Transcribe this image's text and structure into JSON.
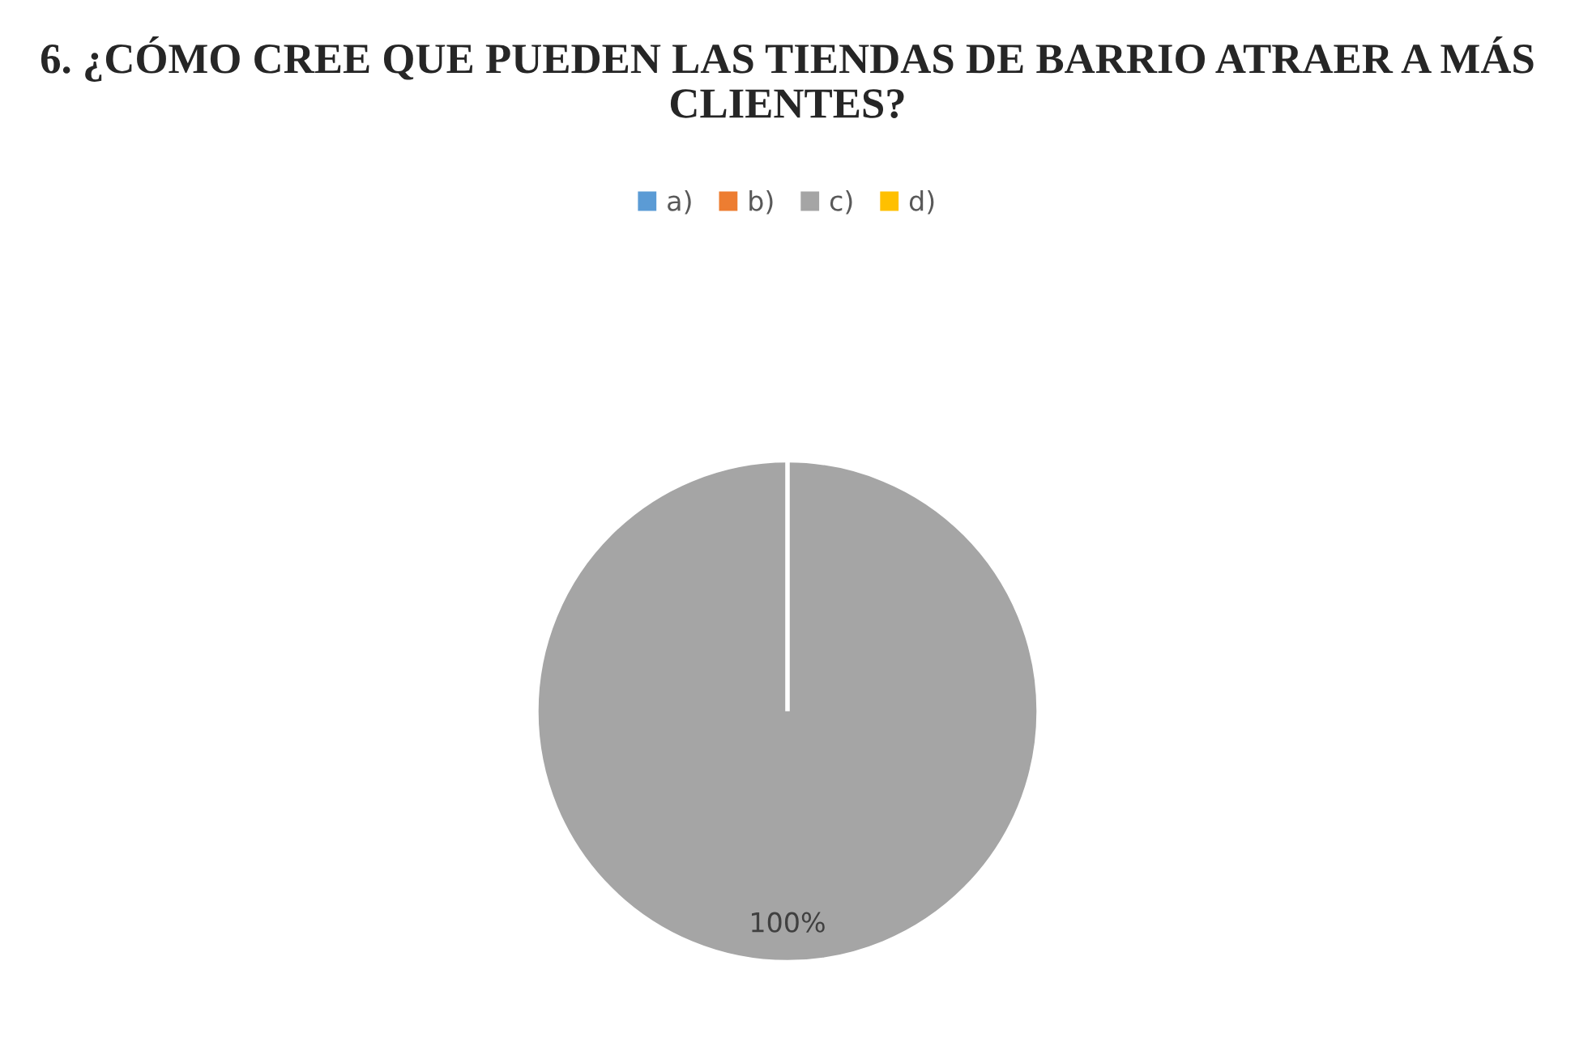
{
  "chart_data": {
    "type": "pie",
    "title": "6. ¿CÓMO CREE QUE PUEDEN LAS TIENDAS DE BARRIO ATRAER A MÁS CLIENTES?",
    "categories": [
      "a)",
      "b)",
      "c)",
      "d)"
    ],
    "values": [
      0,
      0,
      100,
      0
    ],
    "colors": [
      "#5b9bd5",
      "#ed7d31",
      "#a5a5a5",
      "#ffc000"
    ],
    "value_labels": [
      null,
      null,
      "100%",
      null
    ],
    "legend": "top"
  }
}
